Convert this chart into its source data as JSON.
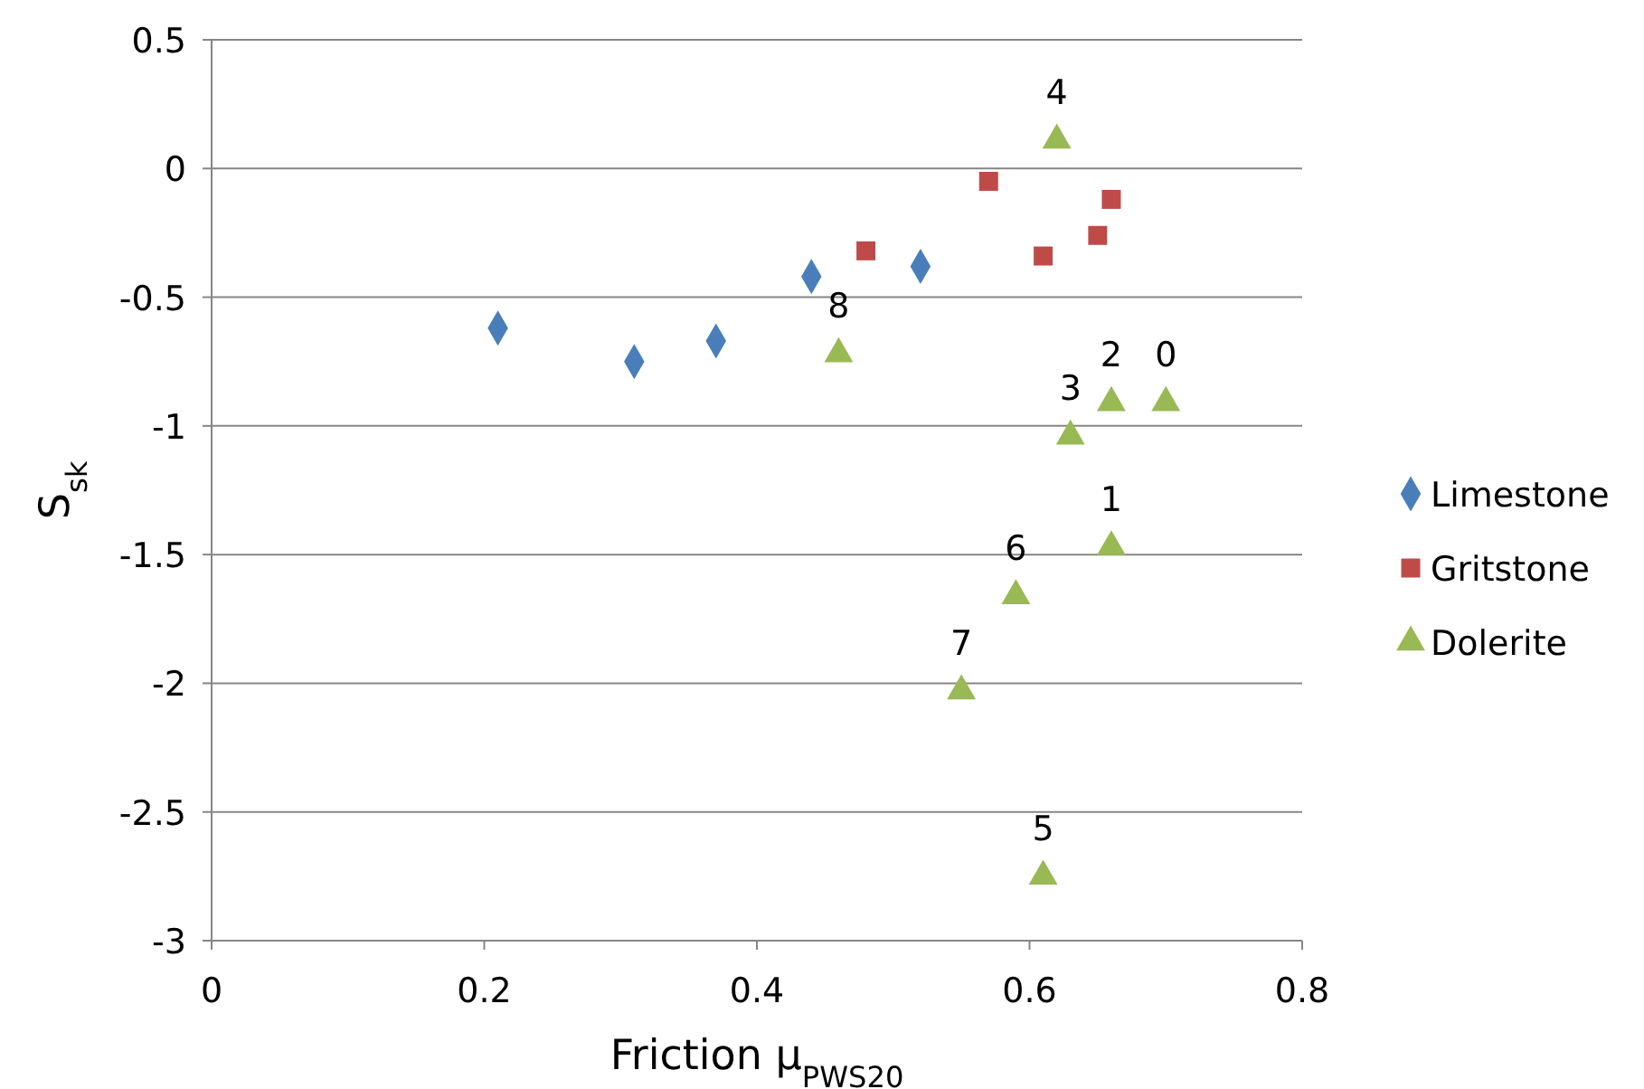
{
  "chart_data": {
    "type": "scatter",
    "xlabel": "Friction μ$_{PWS20}$",
    "ylabel": "S$_{sk}$",
    "xlim": [
      0,
      0.8
    ],
    "xticks": [
      0,
      0.2,
      0.4,
      0.6,
      0.8
    ],
    "ylim": [
      -3,
      0.5
    ],
    "yticks": [
      -3,
      -2.5,
      -2,
      -1.5,
      -1,
      -0.5,
      0,
      0.5
    ],
    "grid": "y",
    "legend": "right",
    "series": [
      {
        "name": "Limestone",
        "color": "#4a7ebb",
        "marker": "diamond",
        "x": [
          0.21,
          0.31,
          0.37,
          0.44,
          0.52
        ],
        "values": [
          -0.62,
          -0.75,
          -0.67,
          -0.42,
          -0.38
        ]
      },
      {
        "name": "Gritstone",
        "color": "#be4b48",
        "marker": "square",
        "x": [
          0.48,
          0.57,
          0.61,
          0.65,
          0.66
        ],
        "values": [
          -0.32,
          -0.05,
          -0.34,
          -0.26,
          -0.12
        ]
      },
      {
        "name": "Dolerite",
        "color": "#98b954",
        "marker": "triangle",
        "x": [
          0.62,
          0.46,
          0.63,
          0.66,
          0.7,
          0.66,
          0.59,
          0.55,
          0.61
        ],
        "values": [
          0.11,
          -0.72,
          -1.04,
          -0.91,
          -0.91,
          -1.47,
          -1.66,
          -2.03,
          -2.75
        ]
      }
    ],
    "annotations": [
      {
        "text": "4",
        "x": 0.62,
        "y": 0.11
      },
      {
        "text": "8",
        "x": 0.46,
        "y": -0.72
      },
      {
        "text": "3",
        "x": 0.63,
        "y": -1.04
      },
      {
        "text": "2",
        "x": 0.66,
        "y": -0.91
      },
      {
        "text": "0",
        "x": 0.7,
        "y": -0.91
      },
      {
        "text": "1",
        "x": 0.66,
        "y": -1.47
      },
      {
        "text": "6",
        "x": 0.59,
        "y": -1.66
      },
      {
        "text": "7",
        "x": 0.55,
        "y": -2.03
      },
      {
        "text": "5",
        "x": 0.61,
        "y": -2.75
      }
    ]
  }
}
